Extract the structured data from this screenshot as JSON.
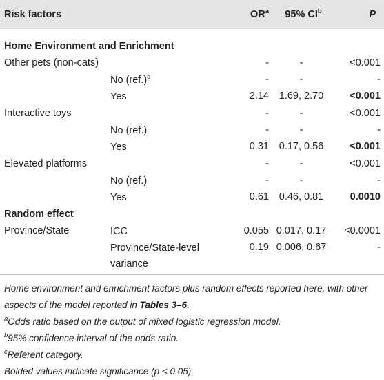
{
  "table": {
    "header": {
      "risk_factors": "Risk factors",
      "or": "OR",
      "or_sup": "a",
      "ci": "95% CI",
      "ci_sup": "b",
      "p": "P"
    },
    "rows": [
      {
        "section": "Home Environment and Enrichment"
      },
      {
        "factor": "Other pets (non-cats)",
        "or": "-",
        "ci": "-",
        "p": "<0.001"
      },
      {
        "level": "No (ref.)",
        "level_sup": "c",
        "or": "-",
        "ci": "-",
        "p": "-"
      },
      {
        "level": "Yes",
        "or": "2.14",
        "ci": "1.69, 2.70",
        "p": "<0.001",
        "p_bold": true
      },
      {
        "factor": "Interactive toys",
        "or": "-",
        "ci": "-",
        "p": "<0.001"
      },
      {
        "level": "No (ref.)",
        "or": "-",
        "ci": "-",
        "p": "-"
      },
      {
        "level": "Yes",
        "or": "0.31",
        "ci": "0.17, 0.56",
        "p": "<0.001",
        "p_bold": true
      },
      {
        "factor": "Elevated platforms",
        "or": "-",
        "ci": "-",
        "p": "<0.001"
      },
      {
        "level": "No (ref.)",
        "or": "-",
        "ci": "-",
        "p": "-"
      },
      {
        "level": "Yes",
        "or": "0.61",
        "ci": "0.46, 0.81",
        "p": "0.0010",
        "p_bold": true
      },
      {
        "section": "Random effect"
      },
      {
        "factor": "Province/State",
        "level": "ICC",
        "or": "0.055",
        "ci": "0.017, 0.17",
        "p": "<0.0001"
      },
      {
        "level": "Province/State-level variance",
        "or": "0.19",
        "ci": "0.006, 0.67",
        "p": "-"
      }
    ],
    "footnotes": [
      {
        "text": "Home environment and enrichment factors plus random effects reported here, with other aspects of the model reported in ",
        "bold": "Tables 3–6",
        "after": "."
      },
      {
        "sup": "a",
        "text": "Odds ratio based on the output of mixed logistic regression model."
      },
      {
        "sup": "b",
        "text": "95% confidence interval of the odds ratio."
      },
      {
        "sup": "c",
        "text": "Referent category."
      },
      {
        "text": "Bolded values indicate significance (p < 0.05)."
      }
    ]
  }
}
